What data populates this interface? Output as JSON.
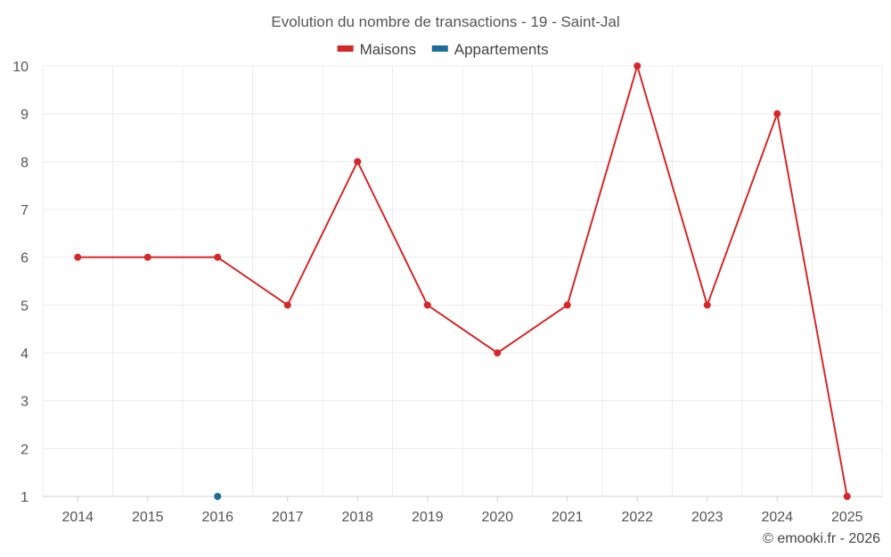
{
  "chart_data": {
    "type": "line",
    "title": "Evolution du nombre de transactions - 19 - Saint-Jal",
    "xlabel": "",
    "ylabel": "",
    "categories": [
      "2014",
      "2015",
      "2016",
      "2017",
      "2018",
      "2019",
      "2020",
      "2021",
      "2022",
      "2023",
      "2024",
      "2025"
    ],
    "ylim": [
      1,
      10
    ],
    "yticks": [
      "1",
      "2",
      "3",
      "4",
      "5",
      "6",
      "7",
      "8",
      "9",
      "10"
    ],
    "grid": true,
    "legend_position": "top-center",
    "series": [
      {
        "name": "Maisons",
        "color": "#d62728",
        "values": [
          6,
          6,
          6,
          5,
          8,
          5,
          4,
          5,
          10,
          5,
          9,
          1
        ]
      },
      {
        "name": "Appartements",
        "color": "#1f6b9c",
        "values": [
          null,
          null,
          1,
          null,
          null,
          null,
          null,
          null,
          null,
          null,
          null,
          null
        ]
      }
    ]
  },
  "credit": "© emooki.fr - 2026"
}
